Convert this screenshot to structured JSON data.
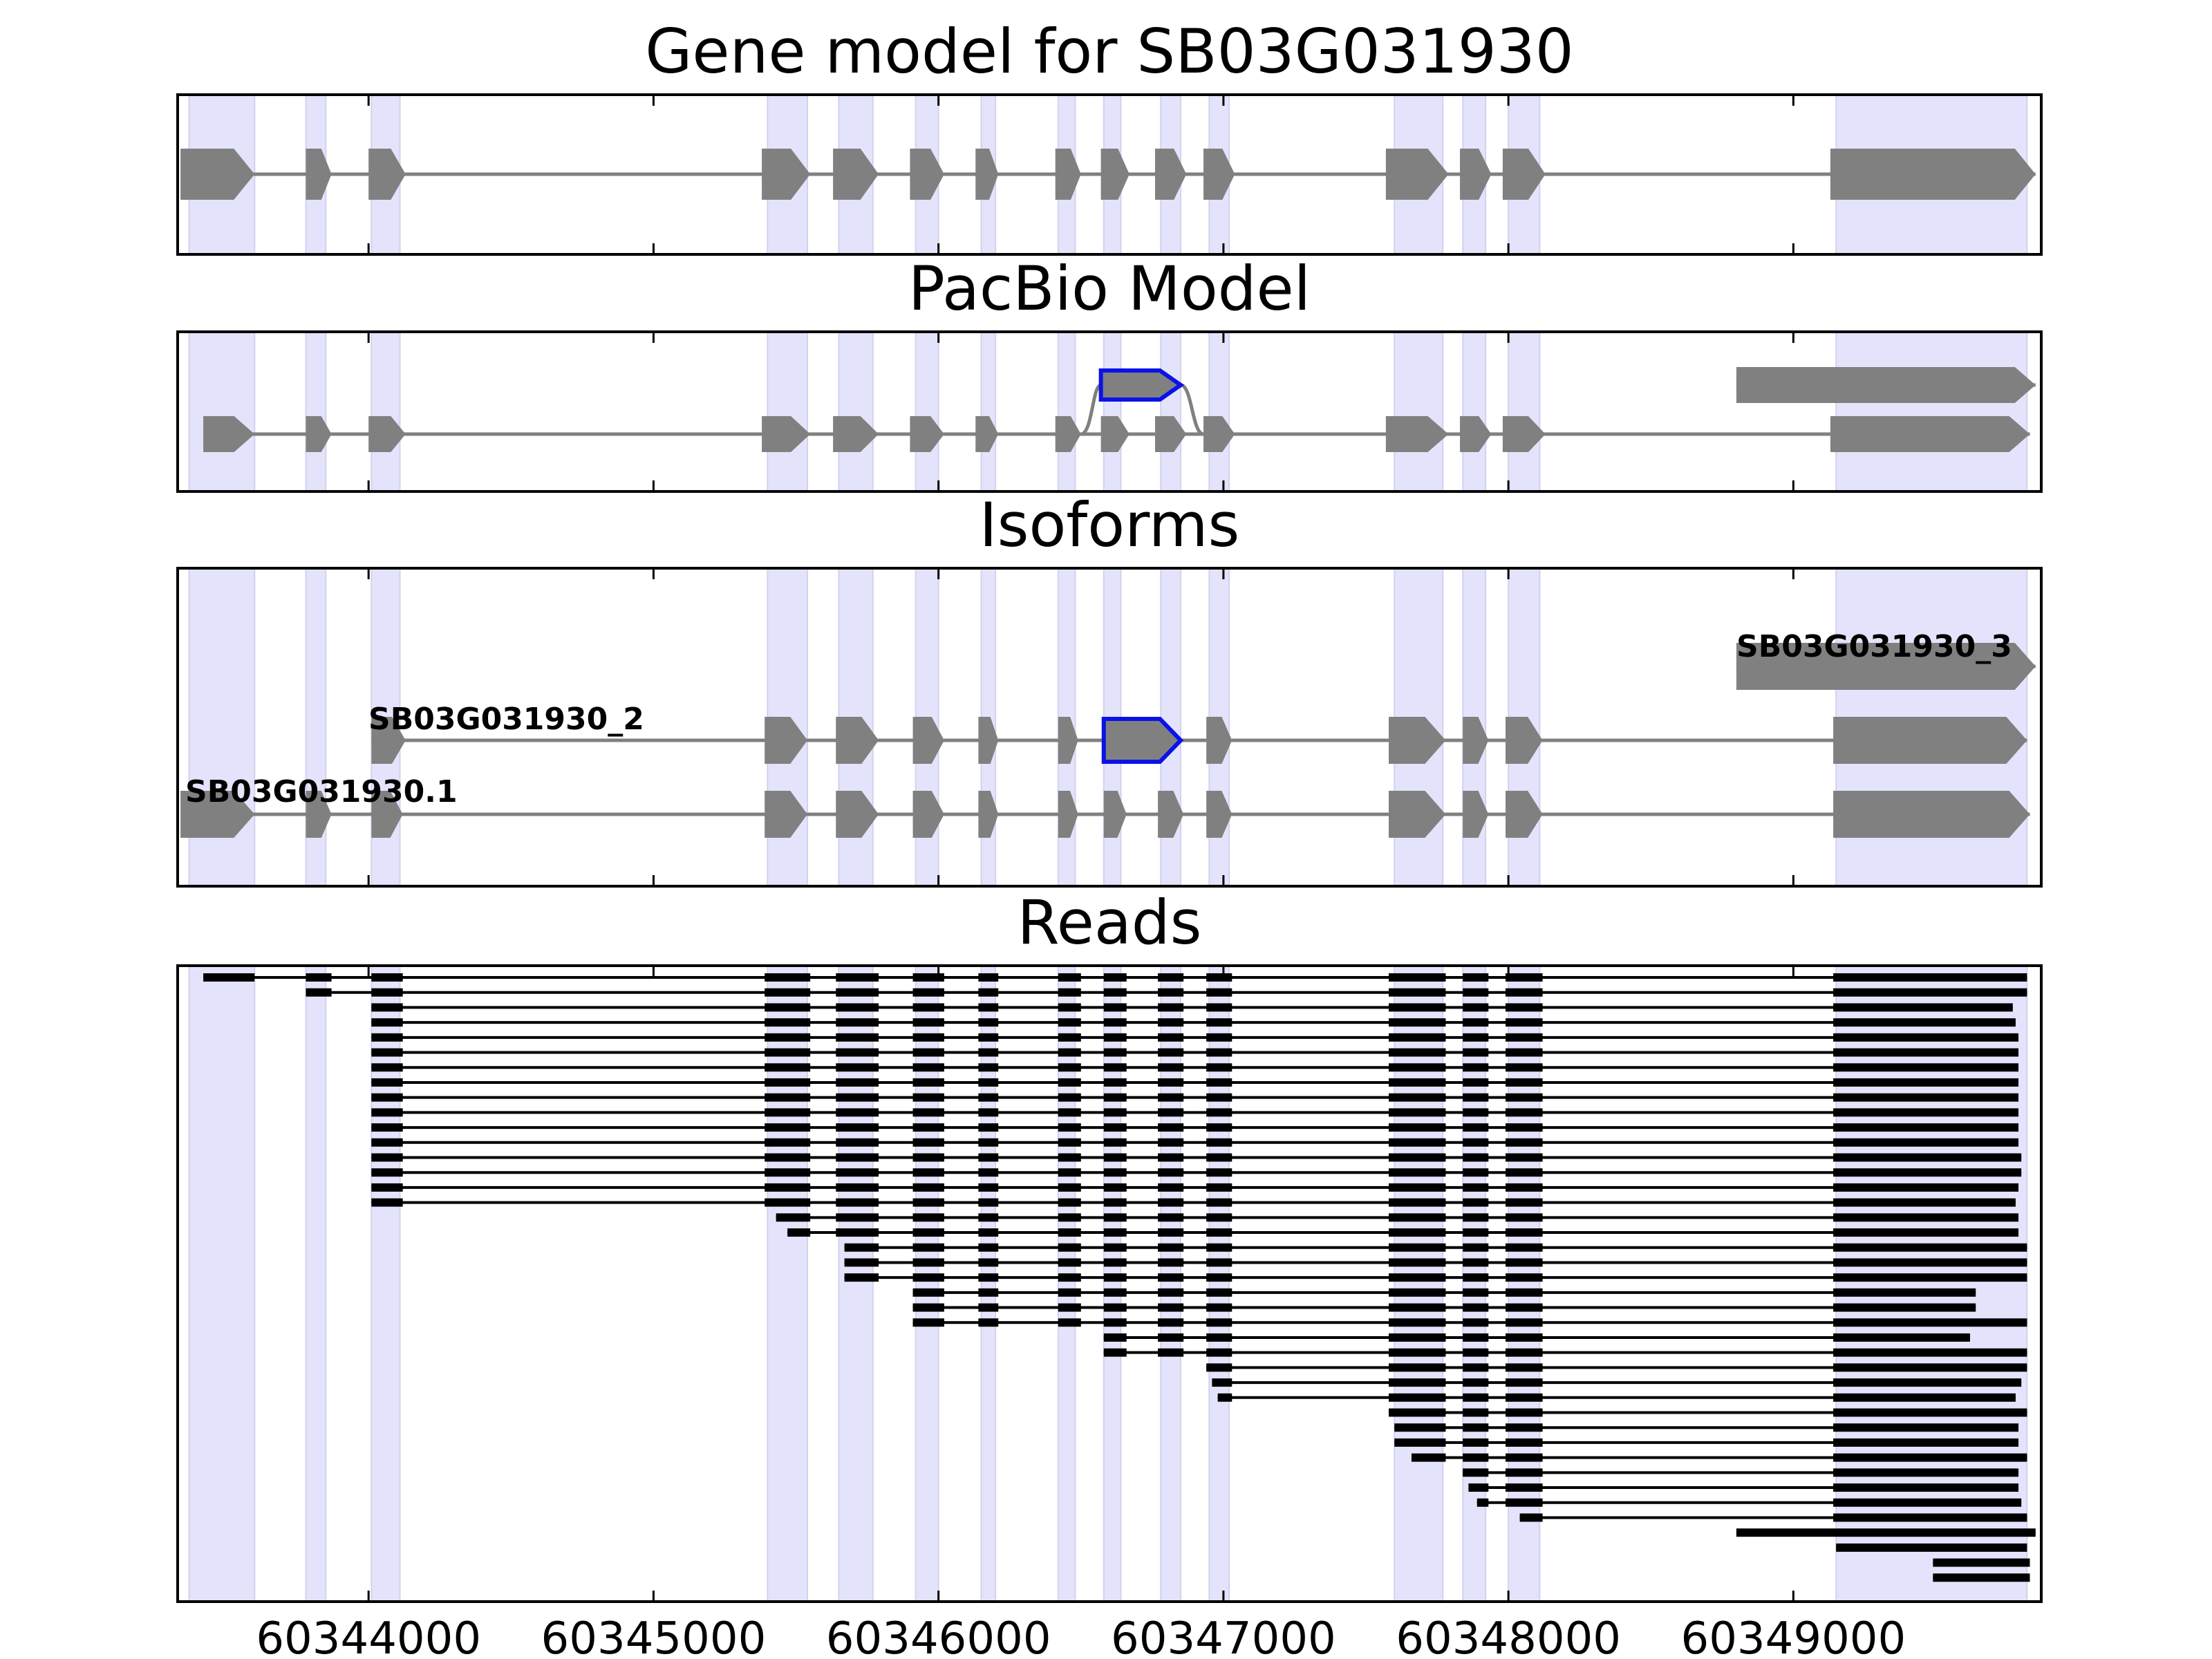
{
  "chart_data": {
    "type": "gene_model",
    "xlim": [
      60343330,
      60349870
    ],
    "x_ticks": [
      60344000,
      60345000,
      60346000,
      60347000,
      60348000,
      60349000
    ],
    "x_tick_labels": [
      "60344000",
      "60345000",
      "60346000",
      "60347000",
      "60348000",
      "60349000"
    ],
    "highlight_regions": [
      [
        60343370,
        60343600
      ],
      [
        60343780,
        60343850
      ],
      [
        60344010,
        60344110
      ],
      [
        60345400,
        60345540
      ],
      [
        60345650,
        60345770
      ],
      [
        60345920,
        60346000
      ],
      [
        60346150,
        60346200
      ],
      [
        60346420,
        60346480
      ],
      [
        60346580,
        60346640
      ],
      [
        60346780,
        60346850
      ],
      [
        60346950,
        60347020
      ],
      [
        60347600,
        60347770
      ],
      [
        60347840,
        60347920
      ],
      [
        60348000,
        60348110
      ],
      [
        60349150,
        60349820
      ]
    ],
    "gene_model": {
      "title": "Gene model for SB03G031930",
      "exons": [
        [
          60343340,
          60343600
        ],
        [
          60343780,
          60343870
        ],
        [
          60344000,
          60344130
        ],
        [
          60345380,
          60345550
        ],
        [
          60345630,
          60345790
        ],
        [
          60345900,
          60346020
        ],
        [
          60346130,
          60346210
        ],
        [
          60346410,
          60346500
        ],
        [
          60346570,
          60346670
        ],
        [
          60346760,
          60346870
        ],
        [
          60346930,
          60347040
        ],
        [
          60347570,
          60347790
        ],
        [
          60347830,
          60347940
        ],
        [
          60347980,
          60348130
        ],
        [
          60349130,
          60349850
        ]
      ]
    },
    "pacbio_model": {
      "title": "PacBio Model",
      "models": [
        {
          "exons": [
            [
              60343420,
              60343600
            ],
            [
              60343780,
              60343870
            ],
            [
              60344000,
              60344130
            ],
            [
              60345380,
              60345550
            ],
            [
              60345630,
              60345790
            ],
            [
              60345900,
              60346020
            ],
            [
              60346130,
              60346210
            ],
            [
              60346410,
              60346500
            ],
            [
              60346570,
              60346670
            ],
            [
              60346760,
              60346870
            ],
            [
              60346930,
              60347040
            ],
            [
              60347570,
              60347790
            ],
            [
              60347830,
              60347940
            ],
            [
              60347980,
              60348130
            ],
            [
              60349130,
              60349830
            ]
          ]
        },
        {
          "exons": [
            [
              60348800,
              60349850
            ]
          ]
        }
      ],
      "alternative_exon": [
        60346570,
        60346850
      ]
    },
    "isoforms": {
      "title": "Isoforms",
      "items": [
        {
          "label": "SB03G031930.1",
          "exons": [
            [
              60343340,
              60343600
            ],
            [
              60343780,
              60343870
            ],
            [
              60344010,
              60344120
            ],
            [
              60345390,
              60345540
            ],
            [
              60345640,
              60345790
            ],
            [
              60345910,
              60346020
            ],
            [
              60346140,
              60346210
            ],
            [
              60346420,
              60346490
            ],
            [
              60346580,
              60346660
            ],
            [
              60346770,
              60346860
            ],
            [
              60346940,
              60347030
            ],
            [
              60347580,
              60347780
            ],
            [
              60347840,
              60347930
            ],
            [
              60347990,
              60348120
            ],
            [
              60349140,
              60349830
            ]
          ]
        },
        {
          "label": "SB03G031930_2",
          "exons": [
            [
              60344010,
              60344130
            ],
            [
              60345390,
              60345540
            ],
            [
              60345640,
              60345790
            ],
            [
              60345910,
              60346020
            ],
            [
              60346140,
              60346210
            ],
            [
              60346420,
              60346490
            ],
            [
              60346580,
              60346850
            ],
            [
              60346940,
              60347030
            ],
            [
              60347580,
              60347780
            ],
            [
              60347840,
              60347930
            ],
            [
              60347990,
              60348120
            ],
            [
              60349140,
              60349820
            ]
          ]
        },
        {
          "label": "SB03G031930_3",
          "exons": [
            [
              60348800,
              60349850
            ]
          ]
        }
      ],
      "alternative_exon": [
        60346580,
        60346850
      ]
    },
    "reads": {
      "title": "Reads",
      "count": 41
    }
  }
}
